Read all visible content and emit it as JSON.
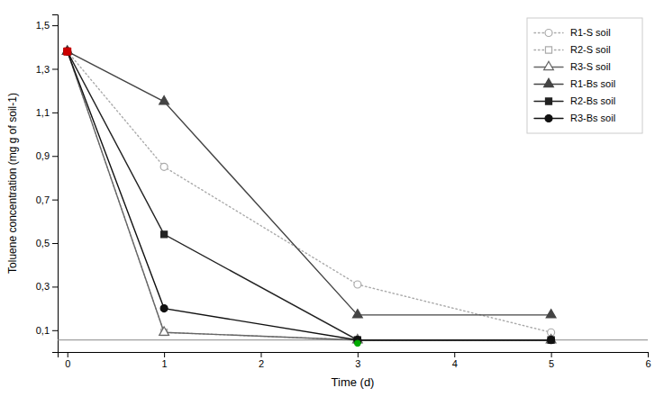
{
  "chart_data": {
    "type": "line",
    "xlabel": "Time (d)",
    "ylabel": "Toluene concentration (mg g of soil-1)",
    "x": [
      0,
      1,
      3,
      5
    ],
    "xlim": [
      -0.1,
      6
    ],
    "xticks": [
      0,
      1,
      2,
      3,
      4,
      5,
      6
    ],
    "ylim": [
      0,
      1.55
    ],
    "yticks": [
      {
        "value": 0.1,
        "label": "0,1"
      },
      {
        "value": 0.3,
        "label": "0,3"
      },
      {
        "value": 0.5,
        "label": "0,5"
      },
      {
        "value": 0.7,
        "label": "0,7"
      },
      {
        "value": 0.9,
        "label": "0,9"
      },
      {
        "value": 1.1,
        "label": "1,1"
      },
      {
        "value": 1.3,
        "label": "1,3"
      },
      {
        "value": 1.5,
        "label": "1,5"
      }
    ],
    "grid": false,
    "legend": "upper right",
    "series": [
      {
        "name": "R1-S soil",
        "color": "#aaaaaa",
        "line_style": "dotted",
        "marker": "circle-open",
        "values": [
          1.38,
          0.85,
          0.31,
          0.09
        ]
      },
      {
        "name": "R2-S soil",
        "color": "#aaaaaa",
        "line_style": "dotted",
        "marker": "square-open",
        "values": [
          1.38,
          0.09,
          0.055,
          0.055
        ]
      },
      {
        "name": "R3-S soil",
        "color": "#666666",
        "line_style": "solid",
        "marker": "triangle-open",
        "values": [
          1.38,
          0.09,
          0.055,
          0.055
        ]
      },
      {
        "name": "R1-Bs soil",
        "color": "#444444",
        "line_style": "solid",
        "marker": "triangle",
        "values": [
          1.38,
          1.15,
          0.17,
          0.17
        ]
      },
      {
        "name": "R2-Bs soil",
        "color": "#222222",
        "line_style": "solid",
        "marker": "square",
        "values": [
          1.38,
          0.54,
          0.055,
          0.055
        ]
      },
      {
        "name": "R3-Bs soil",
        "color": "#111111",
        "line_style": "solid",
        "marker": "circle",
        "values": [
          1.38,
          0.2,
          0.055,
          0.055
        ]
      }
    ],
    "hline": {
      "y": 0.055,
      "color": "#888888"
    },
    "points": [
      {
        "x": 0,
        "y": 1.38,
        "color": "#cc0000",
        "marker": "square"
      },
      {
        "x": 3,
        "y": 0.04,
        "color": "#00aa00",
        "marker": "circle"
      }
    ]
  }
}
